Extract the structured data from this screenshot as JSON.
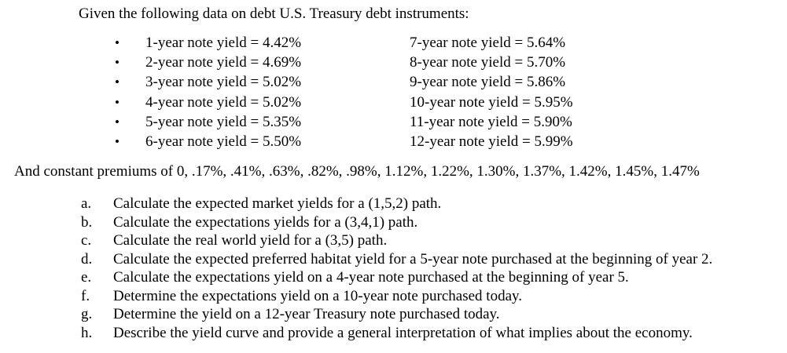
{
  "intro": "Given the following data on debt U.S. Treasury debt instruments:",
  "bullets": [
    {
      "left": "1-year note yield = 4.42%",
      "right": "7-year note yield = 5.64%"
    },
    {
      "left": "2-year note yield = 4.69%",
      "right": "8-year note yield = 5.70%"
    },
    {
      "left": "3-year note yield = 5.02%",
      "right": "9-year note yield = 5.86%"
    },
    {
      "left": "4-year note yield = 5.02%",
      "right": "10-year note yield = 5.95%"
    },
    {
      "left": "5-year note yield = 5.35%",
      "right": "11-year note yield = 5.90%"
    },
    {
      "left": "6-year note yield = 5.50%",
      "right": "12-year note yield = 5.99%"
    }
  ],
  "bullet_glyph": "•",
  "premiums": "And constant premiums of 0, .17%, .41%, .63%, .82%, .98%, 1.12%, 1.22%, 1.30%, 1.37%, 1.42%, 1.45%, 1.47%",
  "questions": [
    {
      "letter": "a.",
      "text": "Calculate the expected market yields for a (1,5,2) path."
    },
    {
      "letter": "b.",
      "text": "Calculate the expectations yields for a (3,4,1) path."
    },
    {
      "letter": "c.",
      "text": "Calculate the real world yield for a (3,5) path."
    },
    {
      "letter": "d.",
      "text": "Calculate the expected preferred habitat yield for a 5-year note purchased at the beginning of year 2."
    },
    {
      "letter": "e.",
      "text": "Calculate the expectations yield on a 4-year note purchased at the beginning of year 5."
    },
    {
      "letter": "f.",
      "text": "Determine the expectations yield on a 10-year note purchased today."
    },
    {
      "letter": "g.",
      "text": "Determine the yield on a 12-year Treasury note purchased today."
    },
    {
      "letter": "h.",
      "text": "Describe the yield curve and provide a general interpretation of what implies about the economy."
    }
  ]
}
